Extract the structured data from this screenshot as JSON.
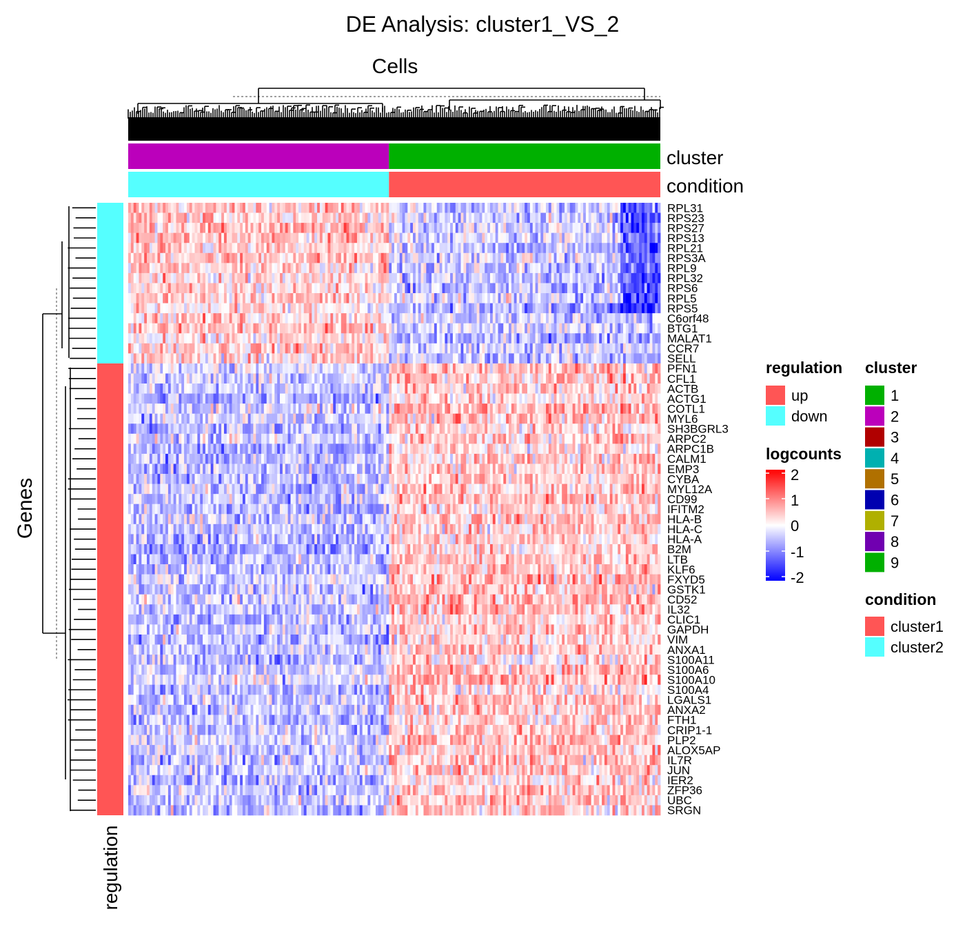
{
  "chart_data": {
    "type": "heatmap",
    "title": "DE Analysis: cluster1_VS_2",
    "column_title": "Cells",
    "row_title": "Genes",
    "column_annotations": [
      {
        "name": "cluster",
        "segments": [
          {
            "value": "2",
            "color": "#BB00BB",
            "fraction": 0.49
          },
          {
            "value": "1",
            "color": "#00B000",
            "fraction": 0.51
          }
        ]
      },
      {
        "name": "condition",
        "segments": [
          {
            "value": "cluster2",
            "color": "#55FFFF",
            "fraction": 0.49
          },
          {
            "value": "cluster1",
            "color": "#FF5555",
            "fraction": 0.51
          }
        ]
      }
    ],
    "row_annotation": {
      "name": "regulation",
      "down_count": 16,
      "up_count": 45
    },
    "genes": [
      "RPL31",
      "RPS23",
      "RPS27",
      "RPS13",
      "RPL21",
      "RPS3A",
      "RPL9",
      "RPL32",
      "RPS6",
      "RPL5",
      "RPS5",
      "C6orf48",
      "BTG1",
      "MALAT1",
      "CCR7",
      "SELL",
      "PFN1",
      "CFL1",
      "ACTB",
      "ACTG1",
      "COTL1",
      "MYL6",
      "SH3BGRL3",
      "ARPC2",
      "ARPC1B",
      "CALM1",
      "EMP3",
      "CYBA",
      "MYL12A",
      "CD99",
      "IFITM2",
      "HLA-B",
      "HLA-C",
      "HLA-A",
      "B2M",
      "LTB",
      "KLF6",
      "FXYD5",
      "GSTK1",
      "CD52",
      "IL32",
      "CLIC1",
      "GAPDH",
      "VIM",
      "ANXA1",
      "S100A11",
      "S100A6",
      "S100A10",
      "S100A4",
      "LGALS1",
      "ANXA2",
      "FTH1",
      "CRIP1-1",
      "PLP2",
      "ALOX5AP",
      "IL7R",
      "JUN",
      "IER2",
      "ZFP36",
      "UBC",
      "SRGN"
    ],
    "color_scale": {
      "name": "logcounts",
      "min": -2,
      "max": 2,
      "ticks": [
        "2",
        "1",
        "0",
        "-1",
        "-2"
      ],
      "low": "#0000FF",
      "mid": "#FFFFFF",
      "high": "#FF0000"
    }
  },
  "legends": {
    "regulation": {
      "title": "regulation",
      "items": [
        {
          "label": "up",
          "color": "#FF5555"
        },
        {
          "label": "down",
          "color": "#55FFFF"
        }
      ]
    },
    "cluster": {
      "title": "cluster",
      "items": [
        {
          "label": "1",
          "color": "#00B000"
        },
        {
          "label": "2",
          "color": "#BB00BB"
        },
        {
          "label": "3",
          "color": "#B00000"
        },
        {
          "label": "4",
          "color": "#00B0B0"
        },
        {
          "label": "5",
          "color": "#B07000"
        },
        {
          "label": "6",
          "color": "#0000B0"
        },
        {
          "label": "7",
          "color": "#B0B000"
        },
        {
          "label": "8",
          "color": "#7000B0"
        },
        {
          "label": "9",
          "color": "#00B000"
        }
      ]
    },
    "condition": {
      "title": "condition",
      "items": [
        {
          "label": "cluster1",
          "color": "#FF5555"
        },
        {
          "label": "cluster2",
          "color": "#55FFFF"
        }
      ]
    }
  }
}
